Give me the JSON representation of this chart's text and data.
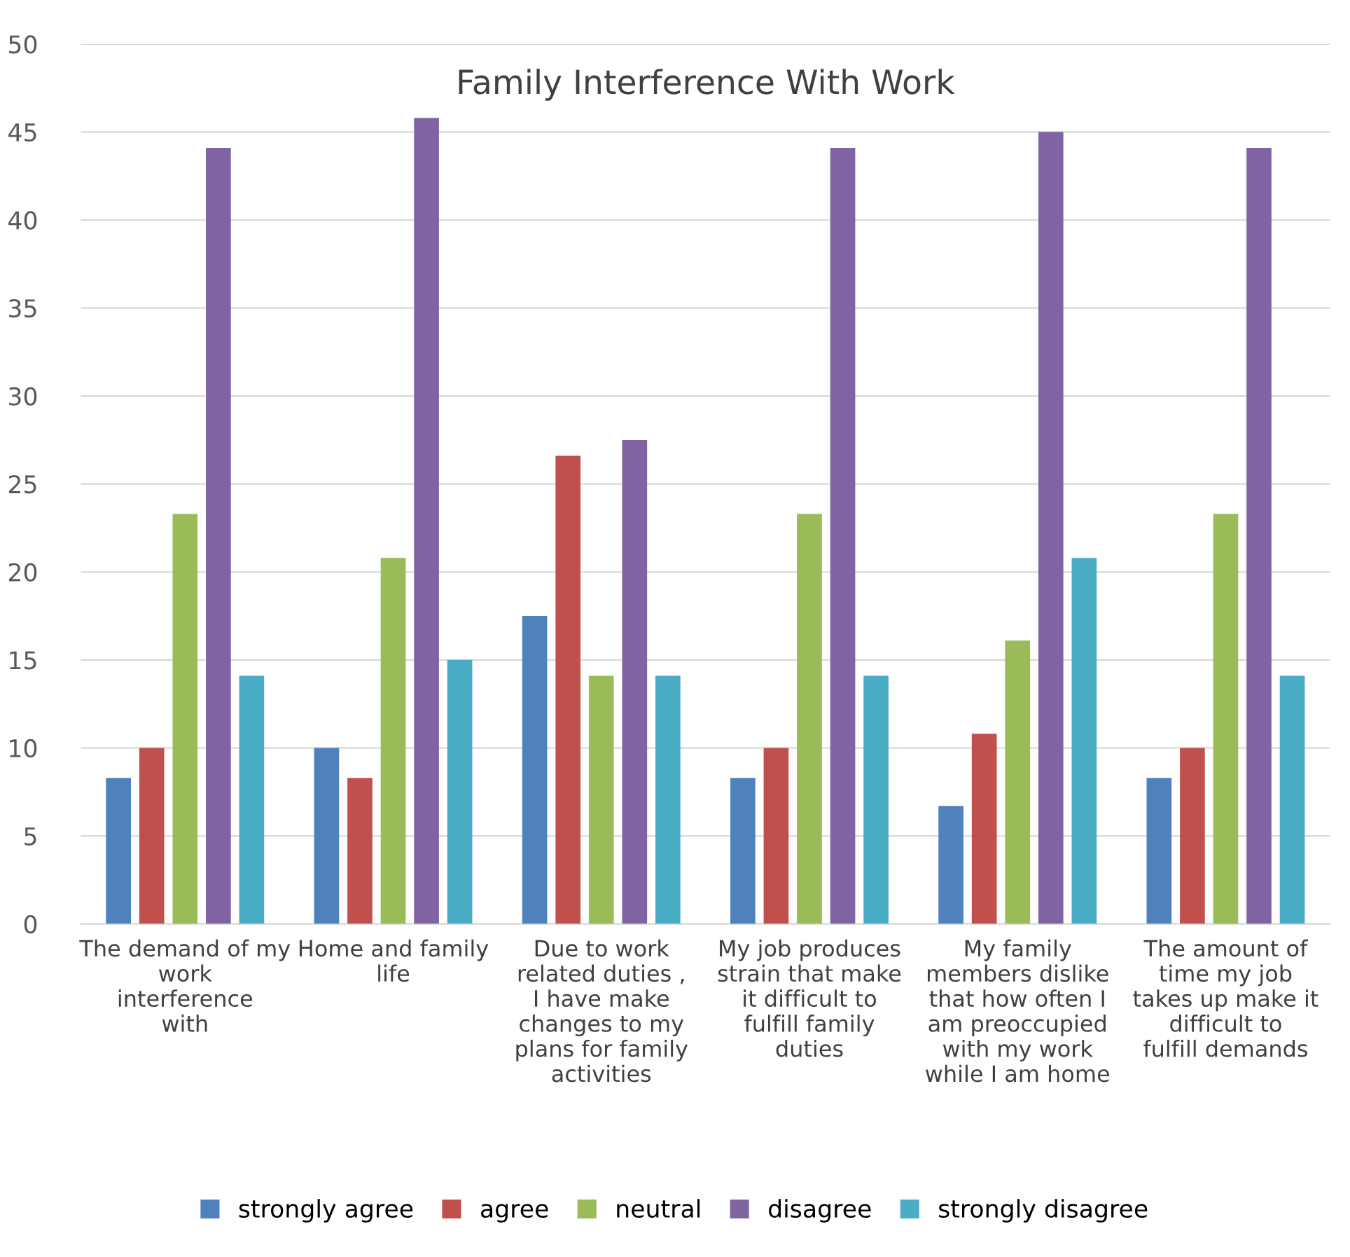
{
  "chart_data": {
    "type": "bar",
    "title": "Family Interference With Work",
    "categories": [
      "The demand of my work interference with",
      "Home and family life",
      "Due to work related duties , I have make changes to my plans for family activities",
      "My job produces strain that make it difficult to fulfill family duties",
      "My family members dislike that how often I am preoccupied with my work while I am home",
      "The amount of time my job takes up make it difficult to fulfill demands"
    ],
    "series": [
      {
        "name": "strongly agree",
        "color": "#4f81bd",
        "values": [
          8.3,
          10,
          17.5,
          8.3,
          6.7,
          8.3
        ]
      },
      {
        "name": "agree",
        "color": "#c0504d",
        "values": [
          10,
          8.3,
          26.6,
          10,
          10.8,
          10
        ]
      },
      {
        "name": "neutral",
        "color": "#9bbb59",
        "values": [
          23.3,
          20.8,
          14.1,
          23.3,
          16.1,
          23.3
        ]
      },
      {
        "name": "disagree",
        "color": "#8064a2",
        "values": [
          44.1,
          45.8,
          27.5,
          44.1,
          45,
          44.1
        ]
      },
      {
        "name": "strongly disagree",
        "color": "#4bacc6",
        "values": [
          14.1,
          15,
          14.1,
          14.1,
          20.8,
          14.1
        ]
      }
    ],
    "ylim": [
      0,
      50
    ],
    "yticks": [
      0,
      5,
      10,
      15,
      20,
      25,
      30,
      35,
      40,
      45,
      50
    ],
    "grid": "y",
    "legend": "bottom"
  }
}
